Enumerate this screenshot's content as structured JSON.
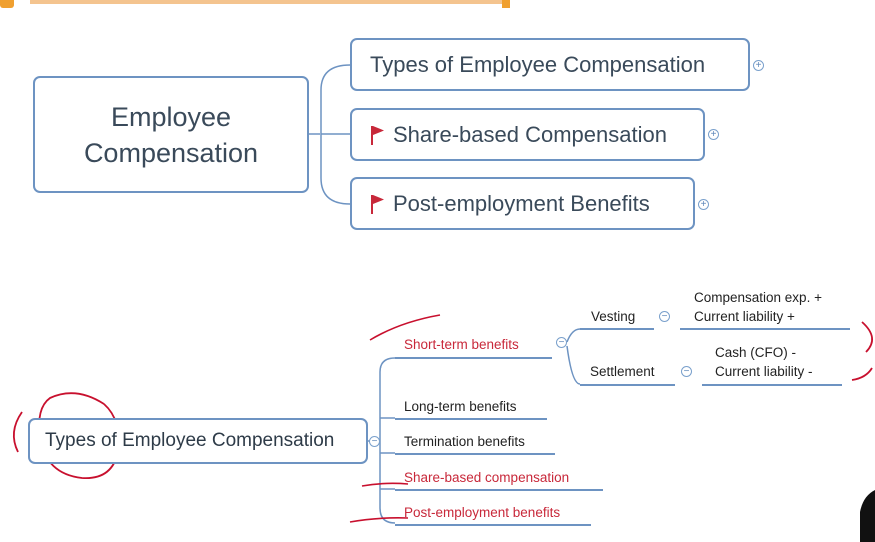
{
  "top_map": {
    "center": "Employee Compensation",
    "children": [
      {
        "label": "Types of Employee Compensation",
        "flagged": false
      },
      {
        "label": "Share-based Compensation",
        "flagged": true
      },
      {
        "label": "Post-employment Benefits",
        "flagged": true
      }
    ],
    "expand_symbol": "+"
  },
  "bottom_map": {
    "root": "Types of Employee Compensation",
    "collapse_symbol": "−",
    "branches": [
      {
        "label": "Short-term benefits",
        "highlight": true
      },
      {
        "label": "Long-term benefits",
        "highlight": false
      },
      {
        "label": "Termination benefits",
        "highlight": false
      },
      {
        "label": "Share-based compensation",
        "highlight": true
      },
      {
        "label": "Post-employment benefits",
        "highlight": true
      }
    ],
    "short_term_children": [
      {
        "label": "Vesting",
        "detail_line1": "Compensation exp. +",
        "detail_line2": "Current liability +"
      },
      {
        "label": "Settlement",
        "detail_line1": "Cash (CFO) -",
        "detail_line2": "Current liability -"
      }
    ]
  },
  "colors": {
    "node_border": "#6d93c2",
    "highlight_text": "#c8283a",
    "annotation": "#c8102e"
  }
}
